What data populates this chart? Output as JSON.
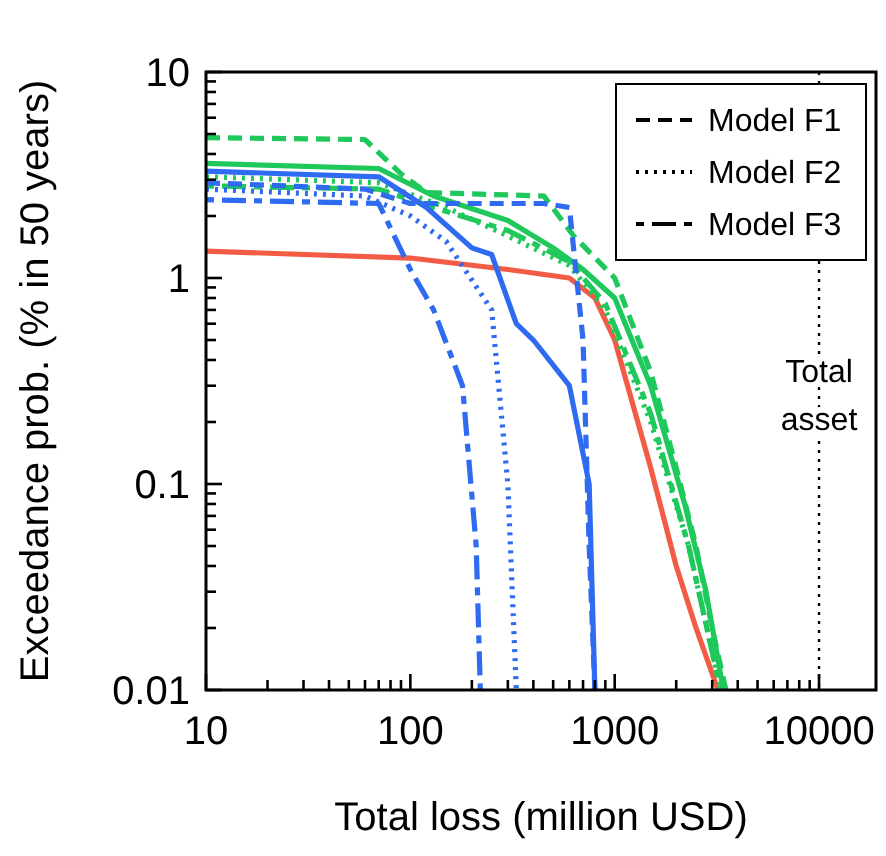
{
  "chart_data": {
    "type": "line",
    "xlabel": "Total loss (million USD)",
    "ylabel": "Exceedance prob. (% in 50 years)",
    "log": "xy",
    "xlim": [
      10,
      19000
    ],
    "ylim": [
      0.01,
      10
    ],
    "xticks": [
      10,
      {
        "value": 20,
        "label": null
      },
      {
        "value": 30,
        "label": null
      },
      {
        "value": 40,
        "label": null
      },
      {
        "value": 50,
        "label": null
      },
      {
        "value": 60,
        "label": null
      },
      {
        "value": 70,
        "label": null
      },
      {
        "value": 80,
        "label": null
      },
      {
        "value": 90,
        "label": null
      },
      100,
      {
        "value": 200,
        "label": null
      },
      {
        "value": 300,
        "label": null
      },
      {
        "value": 400,
        "label": null
      },
      {
        "value": 500,
        "label": null
      },
      {
        "value": 600,
        "label": null
      },
      {
        "value": 700,
        "label": null
      },
      {
        "value": 800,
        "label": null
      },
      {
        "value": 900,
        "label": null
      },
      1000,
      {
        "value": 2000,
        "label": null
      },
      {
        "value": 3000,
        "label": null
      },
      {
        "value": 4000,
        "label": null
      },
      {
        "value": 5000,
        "label": null
      },
      {
        "value": 6000,
        "label": null
      },
      {
        "value": 7000,
        "label": null
      },
      {
        "value": 8000,
        "label": null
      },
      {
        "value": 9000,
        "label": null
      },
      10000
    ],
    "yticks": [
      0.01,
      {
        "value": 0.02,
        "label": null
      },
      {
        "value": 0.03,
        "label": null
      },
      {
        "value": 0.04,
        "label": null
      },
      {
        "value": 0.05,
        "label": null
      },
      {
        "value": 0.06,
        "label": null
      },
      {
        "value": 0.07,
        "label": null
      },
      {
        "value": 0.08,
        "label": null
      },
      {
        "value": 0.09,
        "label": null
      },
      0.1,
      {
        "value": 0.2,
        "label": null
      },
      {
        "value": 0.3,
        "label": null
      },
      {
        "value": 0.4,
        "label": null
      },
      {
        "value": 0.5,
        "label": null
      },
      {
        "value": 0.6,
        "label": null
      },
      {
        "value": 0.7,
        "label": null
      },
      {
        "value": 0.8,
        "label": null
      },
      {
        "value": 0.9,
        "label": null
      },
      1,
      {
        "value": 2,
        "label": null
      },
      {
        "value": 3,
        "label": null
      },
      {
        "value": 4,
        "label": null
      },
      {
        "value": 5,
        "label": null
      },
      {
        "value": 6,
        "label": null
      },
      {
        "value": 7,
        "label": null
      },
      {
        "value": 8,
        "label": null
      },
      {
        "value": 9,
        "label": null
      },
      10
    ],
    "grid": false,
    "marker": "none",
    "annotations": [
      "Model F1",
      "Model F2",
      "Model F3"
    ],
    "ref_lines": [
      {
        "axis": "x",
        "value": 10000,
        "label": "Total asset",
        "color": "#000000",
        "line_style": "dotted"
      }
    ],
    "series": [
      {
        "color": "#f25c45",
        "line_style": "solid",
        "x": [
          10,
          100,
          300,
          600,
          800,
          1000,
          1500,
          2000,
          2500,
          3000,
          3200
        ],
        "values": [
          1.35,
          1.25,
          1.1,
          1.0,
          0.8,
          0.5,
          0.12,
          0.04,
          0.02,
          0.012,
          0.01
        ]
      },
      {
        "color": "#1fc85a",
        "line_style": "dashed",
        "x": [
          10,
          60,
          90,
          120,
          450,
          630,
          1000,
          1500,
          2000,
          2500,
          3000,
          3500
        ],
        "values": [
          4.8,
          4.7,
          3.2,
          2.6,
          2.5,
          1.6,
          1.0,
          0.35,
          0.12,
          0.05,
          0.02,
          0.01
        ]
      },
      {
        "color": "#1fc85a",
        "line_style": "dotted",
        "x": [
          10,
          70,
          150,
          300,
          600,
          900,
          1500,
          2300,
          3300
        ],
        "values": [
          3.1,
          2.9,
          2.2,
          1.6,
          1.15,
          0.7,
          0.2,
          0.05,
          0.01
        ]
      },
      {
        "color": "#1fc85a",
        "line_style": "dashdot",
        "x": [
          10,
          70,
          130,
          300,
          600,
          900,
          1500,
          2300,
          3300
        ],
        "values": [
          2.8,
          2.7,
          2.2,
          1.7,
          1.2,
          0.75,
          0.22,
          0.05,
          0.01
        ]
      },
      {
        "color": "#1fc85a",
        "line_style": "solid",
        "x": [
          10,
          70,
          130,
          300,
          500,
          700,
          1000,
          1500,
          2200,
          2800,
          3400
        ],
        "values": [
          3.6,
          3.4,
          2.5,
          1.9,
          1.4,
          1.1,
          0.8,
          0.3,
          0.08,
          0.03,
          0.01
        ]
      },
      {
        "color": "#2e6bf0",
        "line_style": "dashed",
        "x": [
          10,
          60,
          100,
          450,
          600,
          700,
          750,
          800
        ],
        "values": [
          2.9,
          2.7,
          2.3,
          2.3,
          2.2,
          0.5,
          0.05,
          0.01
        ]
      },
      {
        "color": "#2e6bf0",
        "line_style": "dotted",
        "x": [
          10,
          60,
          100,
          150,
          250,
          300,
          330
        ],
        "values": [
          2.7,
          2.5,
          2.0,
          1.5,
          0.7,
          0.1,
          0.01
        ]
      },
      {
        "color": "#2e6bf0",
        "line_style": "dashdot",
        "x": [
          10,
          70,
          100,
          130,
          180,
          210,
          220
        ],
        "values": [
          2.4,
          2.3,
          1.1,
          0.7,
          0.3,
          0.05,
          0.01
        ]
      },
      {
        "color": "#2e6bf0",
        "line_style": "solid",
        "x": [
          10,
          70,
          120,
          200,
          250,
          330,
          400,
          600,
          750,
          800
        ],
        "values": [
          3.3,
          3.1,
          2.2,
          1.4,
          1.3,
          0.6,
          0.5,
          0.3,
          0.1,
          0.01
        ]
      }
    ]
  }
}
